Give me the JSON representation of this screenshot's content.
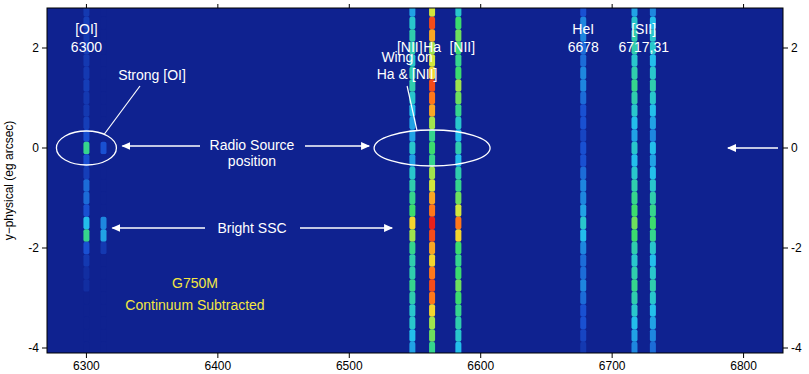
{
  "chart_data": {
    "type": "spectrum_image",
    "y_label": "y−physical (eg arcsec)",
    "xlim": [
      6270,
      6830
    ],
    "xticks": [
      6300,
      6400,
      6500,
      6600,
      6700,
      6800
    ],
    "ylim": [
      -4.1,
      2.8
    ],
    "yticks": [
      2,
      0,
      -2,
      -4
    ],
    "zlim": [
      0,
      1
    ],
    "y": [
      2.75,
      2.5,
      2.25,
      2,
      1.75,
      1.5,
      1.25,
      1,
      0.75,
      0.5,
      0.25,
      0,
      -0.25,
      -0.5,
      -0.75,
      -1,
      -1.25,
      -1.5,
      -1.75,
      -2,
      -2.25,
      -2.5,
      -2.75,
      -3,
      -3.25,
      -3.5,
      -3.75,
      -4
    ],
    "lines": [
      {
        "x": 6300,
        "values": [
          0.1,
          0.12,
          0.1,
          0.12,
          0.1,
          0.1,
          0.12,
          0.1,
          0.1,
          0.12,
          0.2,
          0.55,
          0.2,
          0.12,
          0.25,
          0.25,
          0.2,
          0.4,
          0.55,
          0.2,
          0.1,
          0.05,
          0.05,
          0,
          0,
          0,
          0,
          0
        ]
      },
      {
        "x": 6313,
        "values": [
          0,
          0,
          0,
          0,
          0,
          0,
          0,
          0,
          0,
          0,
          0,
          0.2,
          0,
          0,
          0,
          0,
          0,
          0.3,
          0.35,
          0.1,
          0,
          0,
          0,
          0,
          0,
          0,
          0,
          0
        ]
      },
      {
        "x": 6548,
        "values": [
          0.35,
          0.45,
          0.5,
          0.5,
          0.45,
          0.5,
          0.5,
          0.45,
          0.4,
          0.35,
          0.35,
          0.45,
          0.35,
          0.45,
          0.5,
          0.55,
          0.6,
          0.8,
          0.7,
          0.55,
          0.5,
          0.5,
          0.55,
          0.5,
          0.45,
          0.45,
          0.4,
          0.35
        ]
      },
      {
        "x": 6563,
        "values": [
          0.75,
          0.95,
          0.85,
          0.7,
          0.75,
          0.8,
          0.95,
          0.9,
          0.85,
          0.7,
          0.55,
          0.6,
          0.55,
          0.7,
          0.75,
          0.85,
          0.9,
          1.0,
          0.95,
          0.85,
          0.8,
          0.9,
          0.95,
          0.9,
          0.8,
          0.7,
          0.65,
          0.55
        ]
      },
      {
        "x": 6583,
        "values": [
          0.45,
          0.6,
          0.65,
          0.6,
          0.55,
          0.6,
          0.7,
          0.65,
          0.55,
          0.45,
          0.4,
          0.5,
          0.4,
          0.5,
          0.55,
          0.65,
          0.75,
          0.9,
          0.8,
          0.6,
          0.55,
          0.6,
          0.65,
          0.6,
          0.55,
          0.5,
          0.45,
          0.4
        ]
      },
      {
        "x": 6678,
        "values": [
          0.2,
          0.3,
          0.3,
          0.25,
          0.25,
          0.3,
          0.3,
          0.25,
          0.2,
          0.2,
          0.15,
          0.2,
          0.2,
          0.25,
          0.3,
          0.3,
          0.35,
          0.45,
          0.4,
          0.3,
          0.25,
          0.25,
          0.3,
          0.25,
          0.2,
          0.2,
          0.15,
          0.1
        ]
      },
      {
        "x": 6717,
        "values": [
          0.35,
          0.45,
          0.5,
          0.5,
          0.45,
          0.5,
          0.55,
          0.5,
          0.45,
          0.4,
          0.35,
          0.45,
          0.4,
          0.45,
          0.5,
          0.55,
          0.6,
          0.65,
          0.6,
          0.5,
          0.45,
          0.5,
          0.55,
          0.5,
          0.45,
          0.4,
          0.35,
          0.3
        ]
      },
      {
        "x": 6731,
        "values": [
          0.3,
          0.4,
          0.45,
          0.45,
          0.4,
          0.45,
          0.5,
          0.45,
          0.4,
          0.35,
          0.3,
          0.4,
          0.35,
          0.4,
          0.45,
          0.5,
          0.55,
          0.6,
          0.55,
          0.45,
          0.4,
          0.45,
          0.5,
          0.45,
          0.4,
          0.35,
          0.3,
          0.25
        ]
      }
    ],
    "line_labels": [
      {
        "text": [
          "[OI]",
          "6300"
        ],
        "x": 6300
      },
      {
        "text": [
          "[NII]"
        ],
        "x": 6546
      },
      {
        "text": [
          "Ha"
        ],
        "x": 6563
      },
      {
        "text": [
          "[NII]"
        ],
        "x": 6586
      },
      {
        "text": [
          "HeI",
          "6678"
        ],
        "x": 6678
      },
      {
        "text": [
          "[SII]",
          "6717,31"
        ],
        "x": 6724
      }
    ],
    "annotations": [
      [
        "Strong [OI]"
      ],
      [
        "Wing on",
        "Ha & [NII]"
      ],
      [
        "Radio Source",
        "position"
      ],
      [
        "Bright SSC"
      ],
      [
        "G750M",
        "Continuum Subtracted"
      ]
    ]
  }
}
